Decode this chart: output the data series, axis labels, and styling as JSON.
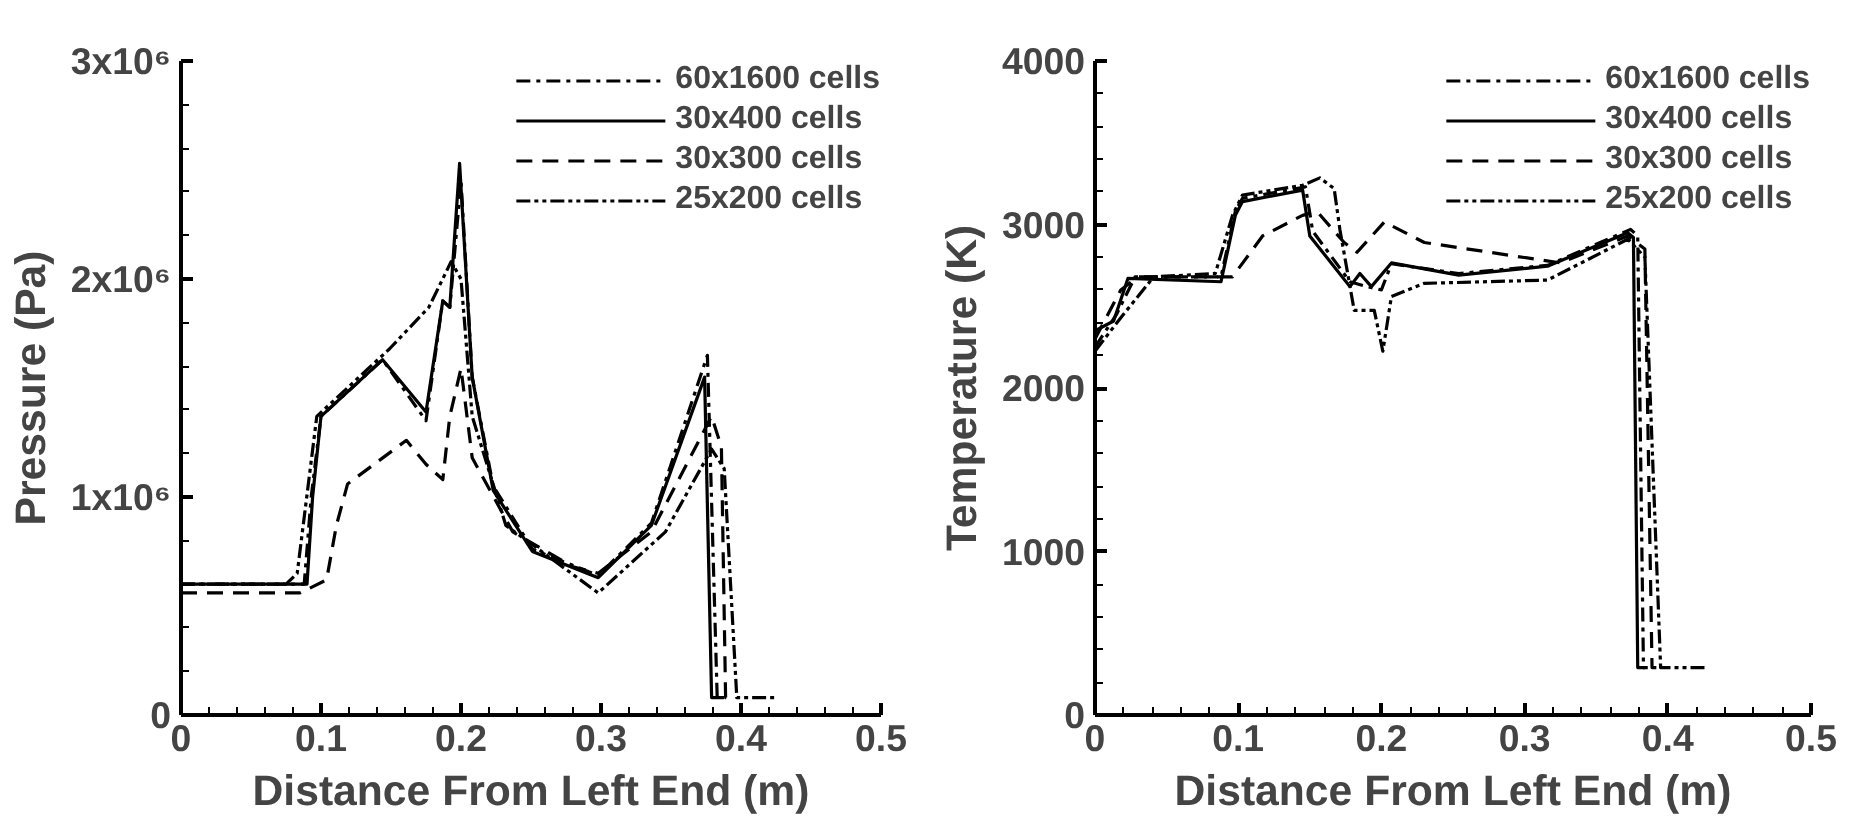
{
  "chart_data": [
    {
      "type": "line",
      "xlabel": "Distance From Left End (m)",
      "ylabel": "Pressure (Pa)",
      "xlim": [
        0,
        0.5
      ],
      "xticks": [
        0,
        0.1,
        0.2,
        0.3,
        0.4,
        0.5
      ],
      "ylim": [
        0,
        3000000
      ],
      "yticks": [
        {
          "value": 0,
          "label": "0"
        },
        {
          "value": 1000000,
          "label": "1x10⁶"
        },
        {
          "value": 2000000,
          "label": "2x10⁶"
        },
        {
          "value": 3000000,
          "label": "3x10⁶"
        }
      ],
      "grid": false,
      "legend": "top right",
      "series": [
        {
          "name": "60x1600 cells",
          "color": "#000000",
          "line_style": "dashdot",
          "x": [
            0,
            0.088,
            0.093,
            0.1,
            0.144,
            0.175,
            0.187,
            0.192,
            0.2,
            0.208,
            0.223,
            0.251,
            0.298,
            0.336,
            0.376,
            0.383,
            0.386
          ],
          "values": [
            600000,
            600000,
            1000000,
            1370000,
            1630000,
            1350000,
            1900000,
            1870000,
            2450000,
            1550000,
            1050000,
            760000,
            640000,
            880000,
            1650000,
            80000,
            80000
          ]
        },
        {
          "name": "30x400 cells",
          "color": "#000000",
          "line_style": "solid",
          "x": [
            0,
            0.09,
            0.094,
            0.1,
            0.144,
            0.175,
            0.187,
            0.192,
            0.199,
            0.208,
            0.223,
            0.251,
            0.298,
            0.336,
            0.374,
            0.379,
            0.388
          ],
          "values": [
            600000,
            600000,
            1000000,
            1370000,
            1630000,
            1390000,
            1900000,
            1870000,
            2530000,
            1550000,
            1030000,
            750000,
            630000,
            870000,
            1550000,
            80000,
            80000
          ]
        },
        {
          "name": "30x300 cells",
          "color": "#000000",
          "line_style": "dashed",
          "x": [
            0,
            0.085,
            0.104,
            0.111,
            0.119,
            0.161,
            0.175,
            0.187,
            0.192,
            0.2,
            0.208,
            0.237,
            0.28,
            0.298,
            0.336,
            0.379,
            0.386,
            0.389,
            0.393
          ],
          "values": [
            560000,
            560000,
            620000,
            870000,
            1060000,
            1260000,
            1150000,
            1080000,
            1370000,
            1590000,
            1180000,
            840000,
            680000,
            650000,
            840000,
            1370000,
            1230000,
            80000,
            80000
          ]
        },
        {
          "name": "25x200 cells",
          "color": "#000000",
          "line_style": "dashdotdot",
          "x": [
            0,
            0.075,
            0.083,
            0.097,
            0.149,
            0.177,
            0.193,
            0.2,
            0.208,
            0.232,
            0.298,
            0.346,
            0.379,
            0.388,
            0.397,
            0.426
          ],
          "values": [
            600000,
            600000,
            650000,
            1370000,
            1680000,
            1870000,
            2080000,
            2000000,
            1370000,
            870000,
            560000,
            840000,
            1220000,
            1130000,
            80000,
            80000
          ]
        }
      ]
    },
    {
      "type": "line",
      "xlabel": "Distance From Left End (m)",
      "ylabel": "Temperature (K)",
      "xlim": [
        0,
        0.5
      ],
      "xticks": [
        0,
        0.1,
        0.2,
        0.3,
        0.4,
        0.5
      ],
      "ylim": [
        0,
        4000
      ],
      "yticks": [
        0,
        1000,
        2000,
        3000,
        4000
      ],
      "grid": false,
      "legend": "top right",
      "series": [
        {
          "name": "60x1600 cells",
          "color": "#000000",
          "line_style": "dashdot",
          "x": [
            0,
            0.015,
            0.028,
            0.088,
            0.098,
            0.103,
            0.147,
            0.152,
            0.178,
            0.19,
            0.2,
            0.207,
            0.254,
            0.316,
            0.374,
            0.379,
            0.383,
            0.386
          ],
          "values": [
            2250,
            2450,
            2680,
            2680,
            3080,
            3160,
            3230,
            2960,
            2650,
            2620,
            2600,
            2760,
            2700,
            2750,
            2970,
            2930,
            290,
            290
          ]
        },
        {
          "name": "30x400 cells",
          "color": "#000000",
          "line_style": "solid",
          "x": [
            0,
            0.013,
            0.023,
            0.088,
            0.098,
            0.103,
            0.145,
            0.15,
            0.178,
            0.185,
            0.193,
            0.207,
            0.254,
            0.316,
            0.372,
            0.376,
            0.379,
            0.384
          ],
          "values": [
            2350,
            2410,
            2670,
            2650,
            3056,
            3140,
            3210,
            2930,
            2620,
            2700,
            2620,
            2765,
            2690,
            2745,
            2950,
            2920,
            290,
            290
          ]
        },
        {
          "name": "30x300 cells",
          "color": "#000000",
          "line_style": "dashed",
          "x": [
            0,
            0.018,
            0.03,
            0.096,
            0.107,
            0.117,
            0.145,
            0.155,
            0.174,
            0.183,
            0.202,
            0.23,
            0.325,
            0.372,
            0.384,
            0.389,
            0.392
          ],
          "values": [
            2300,
            2600,
            2680,
            2680,
            2810,
            2930,
            3056,
            3080,
            2890,
            2830,
            3015,
            2890,
            2765,
            2930,
            2850,
            290,
            290
          ]
        },
        {
          "name": "25x200 cells",
          "color": "#000000",
          "line_style": "dashdotdot",
          "x": [
            0,
            0.018,
            0.041,
            0.084,
            0.096,
            0.103,
            0.145,
            0.157,
            0.167,
            0.171,
            0.181,
            0.195,
            0.201,
            0.207,
            0.23,
            0.316,
            0.372,
            0.384,
            0.395,
            0.428
          ],
          "values": [
            2225,
            2430,
            2680,
            2700,
            3056,
            3180,
            3240,
            3285,
            3220,
            2970,
            2475,
            2475,
            2225,
            2560,
            2640,
            2660,
            2910,
            2800,
            290,
            290
          ]
        }
      ]
    }
  ]
}
